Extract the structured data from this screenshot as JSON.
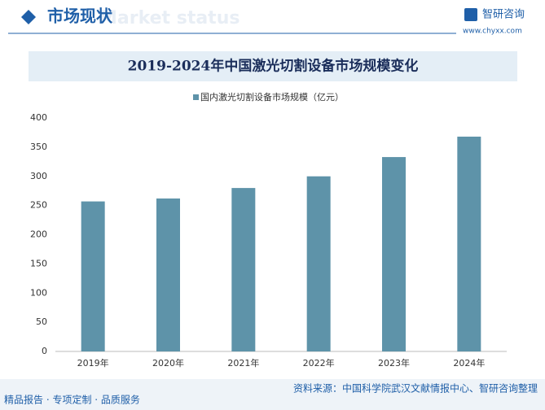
{
  "header": {
    "title": "市场现状",
    "subtitle": "Market status",
    "brand": "智研咨询",
    "url": "www.chyxx.com"
  },
  "footer": {
    "tagline": "精品报告 · 专项定制 · 品质服务",
    "source": "资料来源：中国科学院武汉文献情报中心、智研咨询整理"
  },
  "chart_data": {
    "type": "bar",
    "title": "2019-2024年中国激光切割设备市场规模变化",
    "categories": [
      "2019年",
      "2020年",
      "2021年",
      "2022年",
      "2023年",
      "2024年"
    ],
    "series": [
      {
        "name": "国内激光切割设备市场规模（亿元）",
        "color": "#5e93a9",
        "values": [
          257,
          262,
          280,
          300,
          333,
          368
        ]
      }
    ],
    "ylim": [
      0,
      400
    ],
    "yticks": [
      0,
      50,
      100,
      150,
      200,
      250,
      300,
      350,
      400
    ],
    "grid": false
  }
}
